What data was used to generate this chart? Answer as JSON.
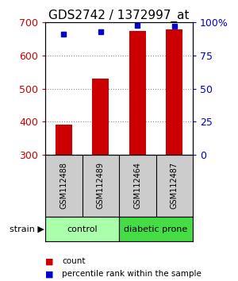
{
  "title": "GDS2742 / 1372997_at",
  "samples": [
    "GSM112488",
    "GSM112489",
    "GSM112464",
    "GSM112487"
  ],
  "counts": [
    390,
    530,
    675,
    680
  ],
  "percentiles": [
    91,
    93,
    98,
    97
  ],
  "ylim_left": [
    300,
    700
  ],
  "ylim_right": [
    0,
    100
  ],
  "yticks_left": [
    300,
    400,
    500,
    600,
    700
  ],
  "yticks_right": [
    0,
    25,
    50,
    75,
    100
  ],
  "bar_color": "#cc0000",
  "dot_color": "#0000cc",
  "bar_width": 0.45,
  "groups": [
    {
      "label": "control",
      "color": "#aaffaa"
    },
    {
      "label": "diabetic prone",
      "color": "#44dd44"
    }
  ],
  "group_row_label": "strain",
  "legend_count_label": "count",
  "legend_pct_label": "percentile rank within the sample",
  "bg_color": "#ffffff",
  "plot_bg_color": "#ffffff",
  "grid_color": "#888888",
  "sample_box_color": "#cccccc",
  "title_fontsize": 11,
  "tick_fontsize": 9,
  "sample_fontsize": 7,
  "group_fontsize": 8,
  "legend_fontsize": 7.5
}
